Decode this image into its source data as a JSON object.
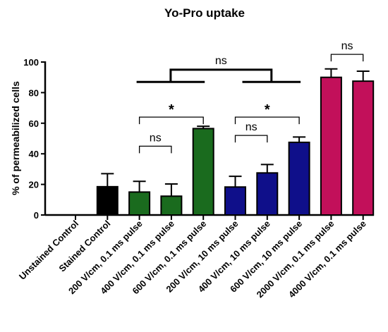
{
  "chart_data": {
    "type": "bar",
    "title": "Yo-Pro uptake",
    "ylabel": "% of permeabilized cells",
    "xlabel": "",
    "ylim": [
      0,
      100
    ],
    "yticks": [
      0,
      20,
      40,
      60,
      80,
      100
    ],
    "grid": false,
    "categories": [
      "Unstained Control",
      "Stained Control",
      "200 V/cm, 0.1 ms pulse",
      "400 V/cm, 0.1 ms pulse",
      "600 V/cm, 0.1 ms pulse",
      "200 V/cm, 10 ms pulse",
      "400 V/cm, 10 ms pulse",
      "600 V/cm, 10 ms pulse",
      "2000 V/cm, 0.1 ms pulse",
      "4000 V/cm, 0.1 ms pulse"
    ],
    "values": [
      0,
      18.5,
      15,
      12.3,
      56.5,
      18.3,
      27.5,
      47.5,
      90,
      87.5
    ],
    "errors": [
      0,
      8.5,
      7,
      8,
      1.5,
      7,
      5.5,
      3.5,
      5.5,
      6.5
    ],
    "colors": [
      "#000000",
      "#000000",
      "#1a6b1e",
      "#1a6b1e",
      "#1a6b1e",
      "#0f0f8a",
      "#0f0f8a",
      "#0f0f8a",
      "#c2105a",
      "#c2105a"
    ],
    "comparisons": [
      {
        "type": "pair",
        "from": 2,
        "to": 3,
        "y": 45,
        "label": "ns"
      },
      {
        "type": "pair",
        "from": 2,
        "to": 4,
        "y": 64,
        "label": "*"
      },
      {
        "type": "pair",
        "from": 5,
        "to": 6,
        "y": 52,
        "label": "ns"
      },
      {
        "type": "pair",
        "from": 5,
        "to": 7,
        "y": 64,
        "label": "*"
      },
      {
        "type": "pair",
        "from": 8,
        "to": 9,
        "y": 105,
        "label": "ns"
      },
      {
        "type": "group",
        "groupA": [
          2,
          4
        ],
        "groupB": [
          5,
          7
        ],
        "yGroup": 87,
        "yTop": 95,
        "label": "ns"
      }
    ]
  }
}
